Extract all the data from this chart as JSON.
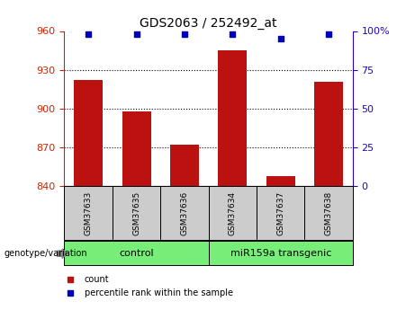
{
  "title": "GDS2063 / 252492_at",
  "categories": [
    "GSM37633",
    "GSM37635",
    "GSM37636",
    "GSM37634",
    "GSM37637",
    "GSM37638"
  ],
  "bar_values": [
    922,
    898,
    872,
    945,
    848,
    921
  ],
  "bar_base": 840,
  "percentile_values": [
    98,
    98,
    98,
    98,
    95,
    98
  ],
  "bar_color": "#bb1111",
  "dot_color": "#0000bb",
  "ylim_left": [
    840,
    960
  ],
  "ylim_right": [
    0,
    100
  ],
  "yticks_left": [
    840,
    870,
    900,
    930,
    960
  ],
  "yticks_right": [
    0,
    25,
    50,
    75,
    100
  ],
  "ytick_labels_right": [
    "0",
    "25",
    "50",
    "75",
    "100%"
  ],
  "group1_label": "control",
  "group2_label": "miR159a transgenic",
  "group1_indices": [
    0,
    1,
    2
  ],
  "group2_indices": [
    3,
    4,
    5
  ],
  "genotype_label": "genotype/variation",
  "legend_count_label": "count",
  "legend_percentile_label": "percentile rank within the sample",
  "background_color": "#ffffff",
  "left_tick_color": "#cc2200",
  "right_tick_color": "#2200cc",
  "sample_box_color": "#cccccc",
  "group_box_color": "#77ee77",
  "bar_width": 0.6
}
